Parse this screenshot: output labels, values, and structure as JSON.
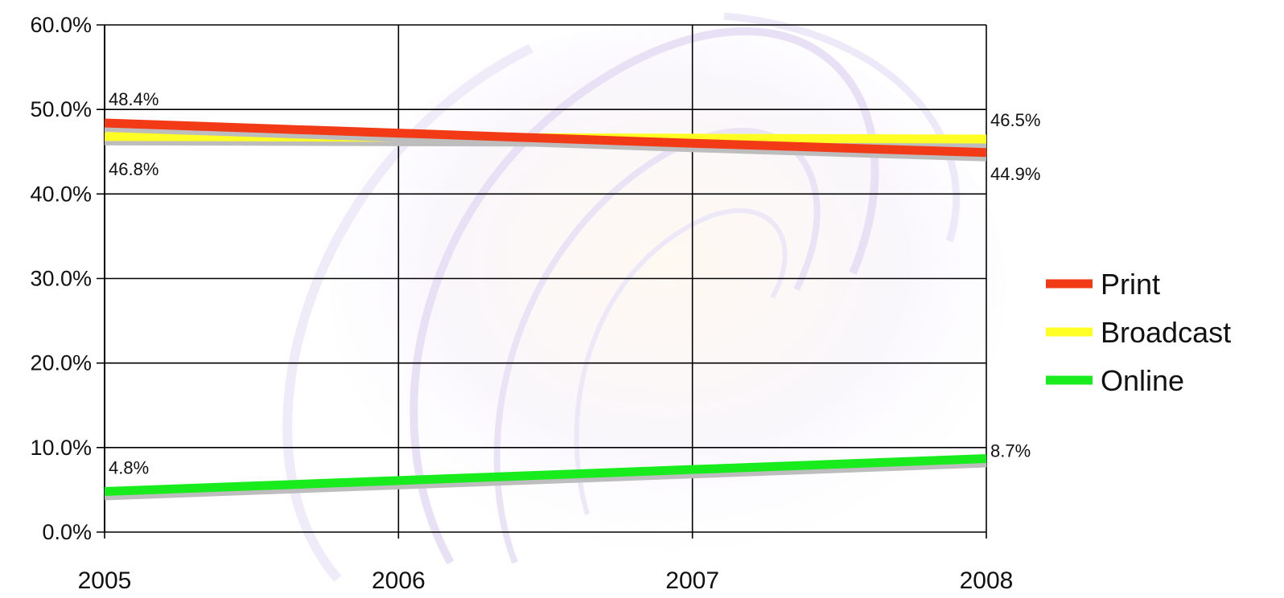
{
  "chart_data": {
    "type": "line",
    "title": "",
    "xlabel": "",
    "ylabel": "",
    "x": [
      "2005",
      "2006",
      "2007",
      "2008"
    ],
    "ylim": [
      0,
      60
    ],
    "yticks": [
      0,
      10,
      20,
      30,
      40,
      50,
      60
    ],
    "ytick_labels": [
      "0.0%",
      "10.0%",
      "20.0%",
      "30.0%",
      "40.0%",
      "50.0%",
      "60.0%"
    ],
    "grid": true,
    "legend": "right",
    "series": [
      {
        "name": "Print",
        "color": "#f23a17",
        "values": [
          48.4,
          47.2,
          46.0,
          44.9
        ],
        "labels": {
          "start": "48.4%",
          "end": "44.9%"
        }
      },
      {
        "name": "Broadcast",
        "color": "#ffff24",
        "values": [
          46.8,
          46.7,
          46.6,
          46.5
        ],
        "labels": {
          "start": "46.8%",
          "end": "46.5%"
        }
      },
      {
        "name": "Online",
        "color": "#18ec1c",
        "values": [
          4.8,
          6.1,
          7.4,
          8.7
        ],
        "labels": {
          "start": "4.8%",
          "end": "8.7%"
        }
      }
    ]
  }
}
